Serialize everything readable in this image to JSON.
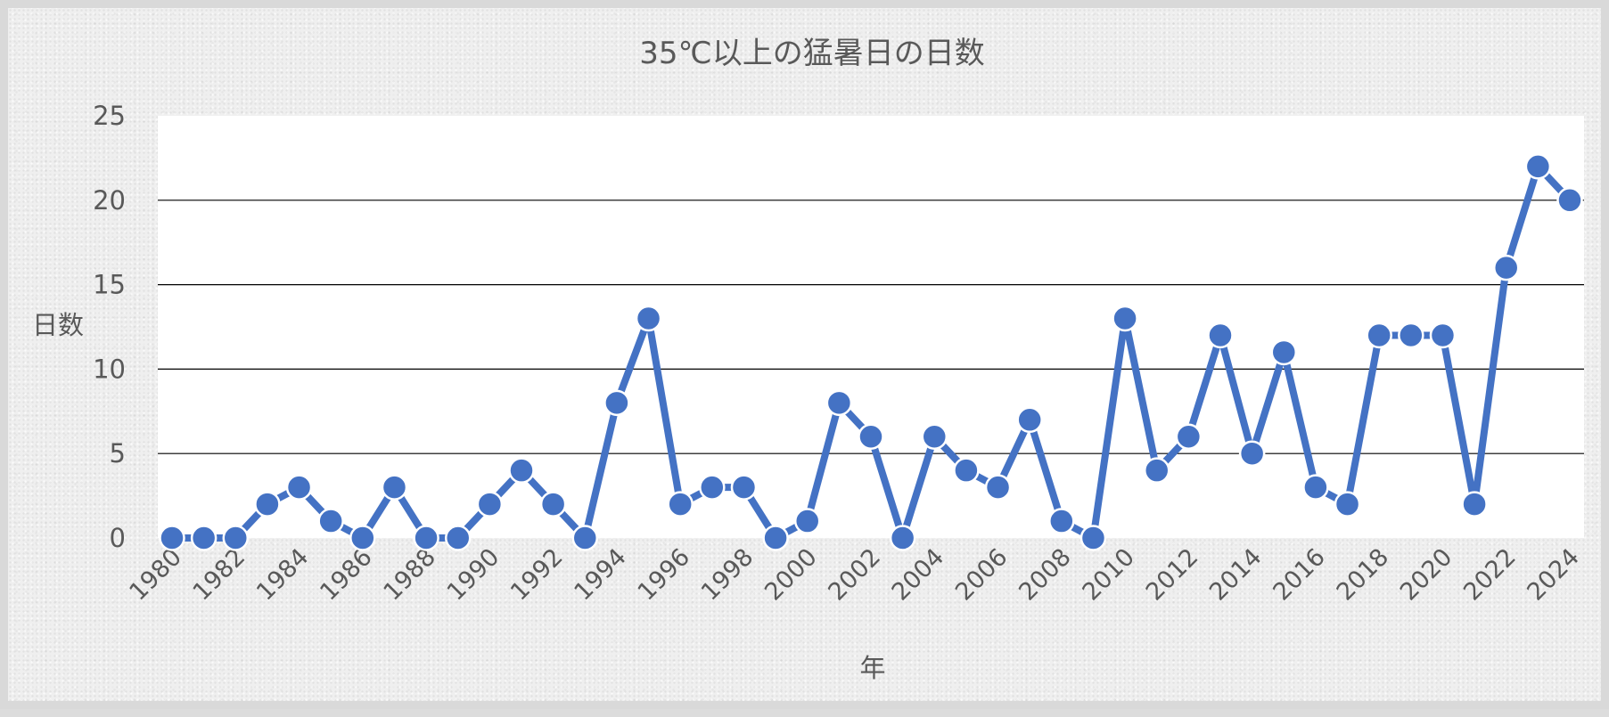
{
  "chart_data": {
    "type": "line",
    "title": "35℃以上の猛暑日の日数",
    "xlabel": "年",
    "ylabel": "日数",
    "x": [
      1980,
      1981,
      1982,
      1983,
      1984,
      1985,
      1986,
      1987,
      1988,
      1989,
      1990,
      1991,
      1992,
      1993,
      1994,
      1995,
      1996,
      1997,
      1998,
      1999,
      2000,
      2001,
      2002,
      2003,
      2004,
      2005,
      2006,
      2007,
      2008,
      2009,
      2010,
      2011,
      2012,
      2013,
      2014,
      2015,
      2016,
      2017,
      2018,
      2019,
      2020,
      2021,
      2022,
      2023,
      2024
    ],
    "x_tick_labels": [
      "1980",
      "1982",
      "1984",
      "1986",
      "1988",
      "1990",
      "1992",
      "1994",
      "1996",
      "1998",
      "2000",
      "2002",
      "2004",
      "2006",
      "2008",
      "2010",
      "2012",
      "2014",
      "2016",
      "2018",
      "2020",
      "2022",
      "2024"
    ],
    "series": [
      {
        "values": [
          0,
          0,
          0,
          2,
          3,
          1,
          0,
          3,
          0,
          0,
          2,
          4,
          2,
          0,
          8,
          13,
          2,
          3,
          3,
          0,
          1,
          8,
          6,
          0,
          6,
          4,
          3,
          7,
          1,
          0,
          13,
          4,
          6,
          12,
          5,
          11,
          3,
          2,
          12,
          12,
          12,
          2,
          16,
          22,
          20
        ]
      }
    ],
    "ylim": [
      0,
      25
    ],
    "y_ticks": [
      "0",
      "5",
      "10",
      "15",
      "20",
      "25"
    ],
    "grid": "horizontal",
    "legend": "none",
    "colors": {
      "line": "#4472c4",
      "gridline": "#000000",
      "plot_background": "#ffffff",
      "text": "#595959"
    }
  }
}
